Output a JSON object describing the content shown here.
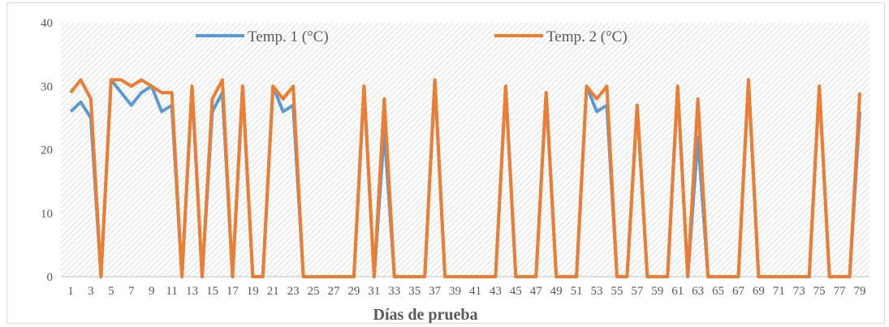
{
  "chart_data": {
    "type": "line",
    "title": "",
    "xlabel": "Días de prueba",
    "ylabel": "",
    "ylim": [
      0,
      40
    ],
    "yticks": [
      0,
      10,
      20,
      30,
      40
    ],
    "x": [
      1,
      2,
      3,
      4,
      5,
      6,
      7,
      8,
      9,
      10,
      11,
      12,
      13,
      14,
      15,
      16,
      17,
      18,
      19,
      20,
      21,
      22,
      23,
      24,
      25,
      26,
      27,
      28,
      29,
      30,
      31,
      32,
      33,
      34,
      35,
      36,
      37,
      38,
      39,
      40,
      41,
      42,
      43,
      44,
      45,
      46,
      47,
      48,
      49,
      50,
      51,
      52,
      53,
      54,
      55,
      56,
      57,
      58,
      59,
      60,
      61,
      62,
      63,
      64,
      65,
      66,
      67,
      68,
      69,
      70,
      71,
      72,
      73,
      74,
      75,
      76,
      77,
      78,
      79
    ],
    "xtick_labels": [
      "1",
      "3",
      "5",
      "7",
      "9",
      "11",
      "13",
      "15",
      "17",
      "19",
      "21",
      "23",
      "25",
      "27",
      "29",
      "31",
      "33",
      "35",
      "37",
      "39",
      "41",
      "43",
      "45",
      "47",
      "49",
      "51",
      "53",
      "55",
      "57",
      "59",
      "61",
      "63",
      "65",
      "67",
      "69",
      "71",
      "73",
      "75",
      "77",
      "79"
    ],
    "legend_position": "top",
    "background": "diagonal-hatch",
    "series": [
      {
        "name": "Temp. 1 (°C)",
        "color": "#5b9bd5",
        "values": [
          26,
          27.5,
          25,
          0,
          31,
          29,
          27,
          29,
          30,
          26,
          27,
          0,
          30,
          0,
          26,
          29,
          0,
          30,
          0,
          0,
          30,
          26,
          27,
          0,
          0,
          0,
          0,
          0,
          0,
          30,
          0,
          23,
          0,
          0,
          0,
          0,
          31,
          0,
          0,
          0,
          0,
          0,
          0,
          30,
          0,
          0,
          0,
          29,
          0,
          0,
          0,
          30,
          26,
          27,
          0,
          0,
          27,
          0,
          0,
          0,
          30,
          0,
          22,
          0,
          0,
          0,
          0,
          31,
          0,
          0,
          0,
          0,
          0,
          0,
          30,
          0,
          0,
          0,
          26
        ]
      },
      {
        "name": "Temp. 2  (°C)",
        "color": "#ed7d31",
        "values": [
          29,
          31,
          28,
          0,
          31,
          31,
          30,
          31,
          30,
          29,
          29,
          0,
          30,
          0,
          28,
          31,
          0,
          30,
          0,
          0,
          30,
          28,
          30,
          0,
          0,
          0,
          0,
          0,
          0,
          30,
          0,
          28,
          0,
          0,
          0,
          0,
          31,
          0,
          0,
          0,
          0,
          0,
          0,
          30,
          0,
          0,
          0,
          29,
          0,
          0,
          0,
          30,
          28,
          30,
          0,
          0,
          27,
          0,
          0,
          0,
          30,
          0,
          28,
          0,
          0,
          0,
          0,
          31,
          0,
          0,
          0,
          0,
          0,
          0,
          30,
          0,
          0,
          0,
          29
        ]
      }
    ]
  }
}
